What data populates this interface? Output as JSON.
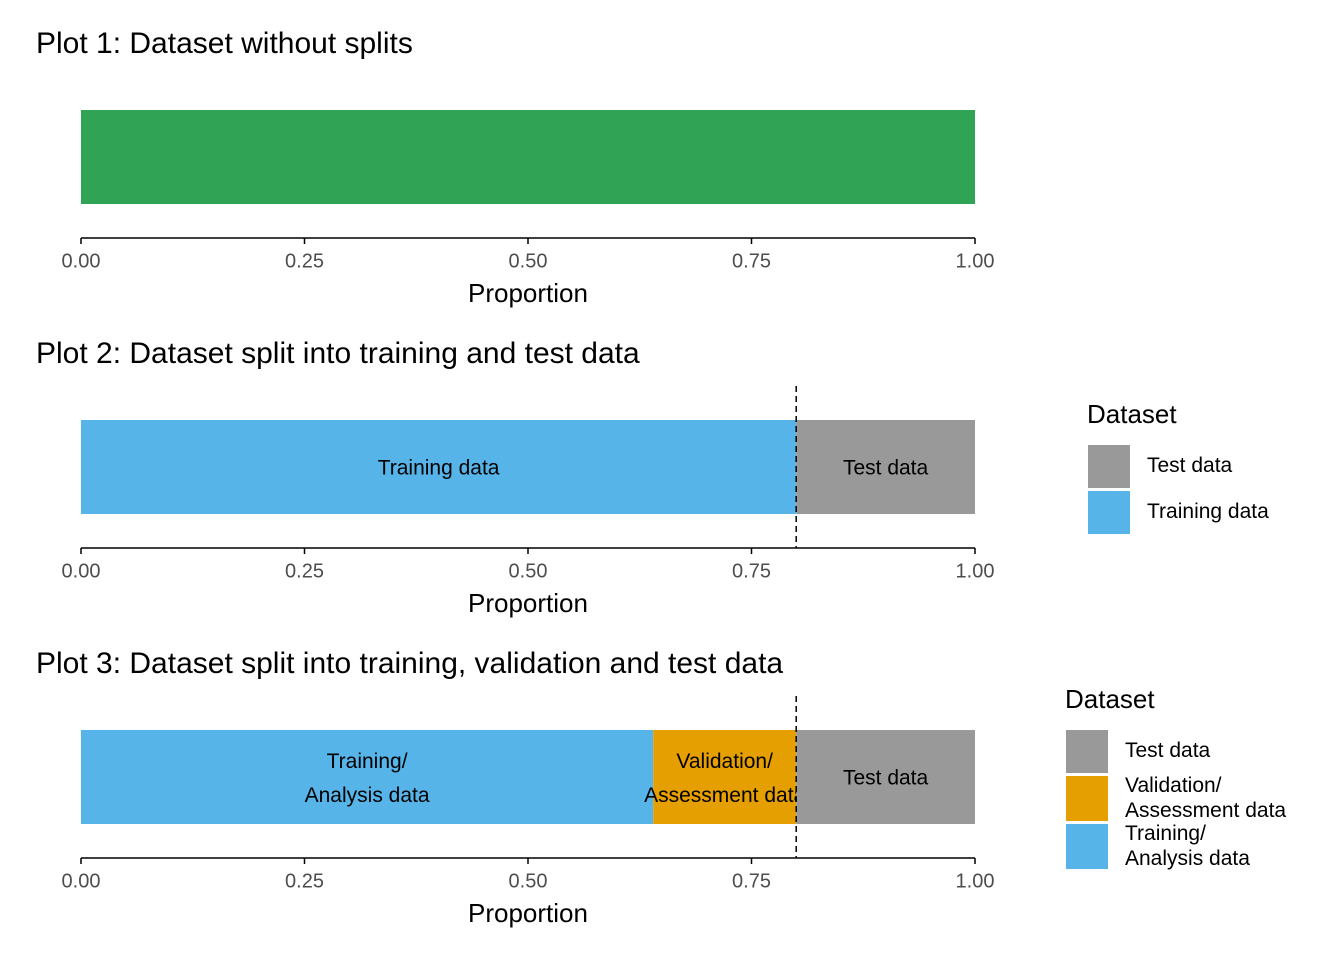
{
  "chart_data": [
    {
      "type": "bar",
      "title": "Plot 1: Dataset without splits",
      "xlabel": "Proportion",
      "xlim": [
        0,
        1
      ],
      "xticks": [
        {
          "value": 0,
          "label": "0.00"
        },
        {
          "value": 0.25,
          "label": "0.25"
        },
        {
          "value": 0.5,
          "label": "0.50"
        },
        {
          "value": 0.75,
          "label": "0.75"
        },
        {
          "value": 1,
          "label": "1.00"
        }
      ],
      "series": [
        {
          "color": "#31A354",
          "values": [
            1
          ]
        }
      ]
    },
    {
      "type": "bar",
      "title": "Plot 2: Dataset split into training and test data",
      "xlabel": "Proportion",
      "xlim": [
        0,
        1
      ],
      "xticks": [
        {
          "value": 0,
          "label": "0.00"
        },
        {
          "value": 0.25,
          "label": "0.25"
        },
        {
          "value": 0.5,
          "label": "0.50"
        },
        {
          "value": 0.75,
          "label": "0.75"
        },
        {
          "value": 1,
          "label": "1.00"
        }
      ],
      "vline": 0.8,
      "legend": "right",
      "legend_title": "Dataset",
      "series": [
        {
          "name": "Training data",
          "color": "#56B4E9",
          "values": [
            0.8
          ]
        },
        {
          "name": "Test data",
          "color": "#999999",
          "values": [
            0.2
          ]
        }
      ]
    },
    {
      "type": "bar",
      "title": "Plot 3: Dataset split into training, validation and test data",
      "xlabel": "Proportion",
      "xlim": [
        0,
        1
      ],
      "xticks": [
        {
          "value": 0,
          "label": "0.00"
        },
        {
          "value": 0.25,
          "label": "0.25"
        },
        {
          "value": 0.5,
          "label": "0.50"
        },
        {
          "value": 0.75,
          "label": "0.75"
        },
        {
          "value": 1,
          "label": "1.00"
        }
      ],
      "vline": 0.8,
      "legend": "right",
      "legend_title": "Dataset",
      "series": [
        {
          "name": "Training/\nAnalysis data",
          "color": "#56B4E9",
          "values": [
            0.64
          ]
        },
        {
          "name": "Validation/\nAssessment data",
          "color": "#E69F00",
          "values": [
            0.16
          ]
        },
        {
          "name": "Test data",
          "color": "#999999",
          "values": [
            0.2
          ]
        }
      ]
    }
  ]
}
